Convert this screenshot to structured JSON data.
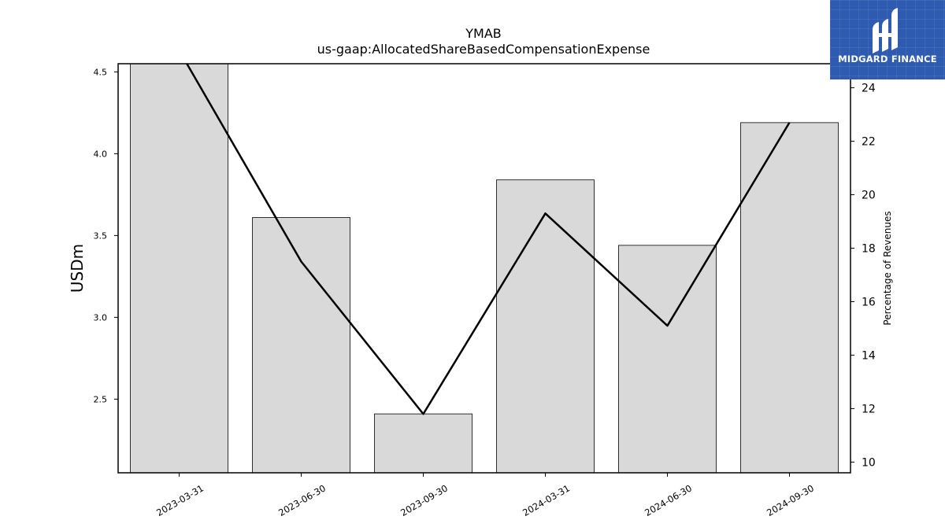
{
  "branding": {
    "logo_text": "MIDGARD FINANCE",
    "logo_color": "#2e5bb0",
    "logo_icon": "midgard-logo-icon"
  },
  "chart_data": {
    "type": "bar",
    "title": "YMAB",
    "subtitle": "us-gaap:AllocatedShareBasedCompensationExpense",
    "categories": [
      "2023-03-31",
      "2023-06-30",
      "2023-09-30",
      "2024-03-31",
      "2024-06-30",
      "2024-09-30"
    ],
    "series": [
      {
        "type": "bar",
        "axis": "left",
        "values": [
          4.56,
          3.61,
          2.41,
          3.84,
          3.44,
          4.19
        ],
        "color": "#d9d9d9"
      },
      {
        "type": "line",
        "axis": "right",
        "values": [
          25.4,
          17.5,
          11.8,
          19.3,
          15.1,
          22.7
        ],
        "color": "#000000"
      }
    ],
    "ylabel": "USDm",
    "y2label": "Percentage of Revenues",
    "ylim": [
      2.05,
      4.55
    ],
    "y2lim": [
      9.6,
      24.9
    ],
    "yticks": [
      "2.5",
      "3.0",
      "3.5",
      "4.0",
      "4.5"
    ],
    "y2ticks": [
      "10",
      "12",
      "14",
      "16",
      "18",
      "20",
      "22",
      "24"
    ],
    "grid": false
  }
}
